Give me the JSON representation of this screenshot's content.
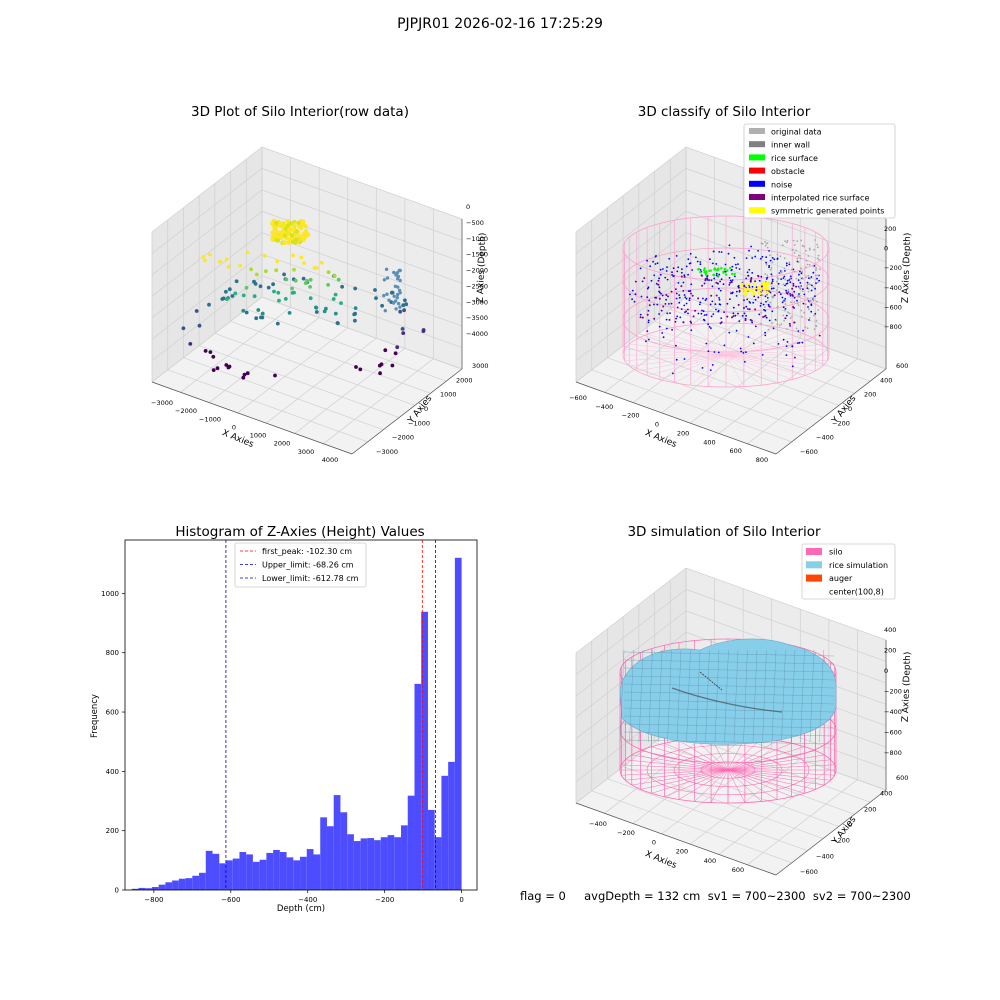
{
  "figure": {
    "suptitle": "PJPJR01 2026-02-16 17:25:29",
    "footer": "flag = 0     avgDepth = 132 cm  sv1 = 700~2300  sv2 = 700~2300"
  },
  "colors": {
    "hist_bar": "#4d4dff",
    "first_peak_line": "#ff0000",
    "limit_line": "#0000cc",
    "silo_pink": "#ff69b4",
    "rice_sim": "#87ceeb",
    "auger": "#ff4500"
  },
  "chart_data": [
    {
      "type": "scatter",
      "subtype": "3d",
      "title": "3D Plot of Silo Interior(row data)",
      "xlabel": "X Axies",
      "ylabel": "Y Axies",
      "zlabel": "Z Axies (Depth)",
      "x_ticks": [
        "−3000",
        "−2000",
        "−1000",
        "0",
        "1000",
        "2000",
        "3000",
        "4000"
      ],
      "y_ticks": [
        "−3000",
        "−2000",
        "−1000",
        "0",
        "1000",
        "2000",
        "3000"
      ],
      "z_ticks": [
        "0",
        "−500",
        "−1000",
        "−1500",
        "−2000",
        "−2500",
        "−3000",
        "−3500",
        "−4000"
      ],
      "colormap": "viridis",
      "grid": true
    },
    {
      "type": "scatter",
      "subtype": "3d",
      "title": "3D classify of Silo Interior",
      "xlabel": "X Axies",
      "ylabel": "Y Axies",
      "zlabel": "Z Axies (Depth)",
      "x_ticks": [
        "−600",
        "−400",
        "−200",
        "0",
        "200",
        "400",
        "600",
        "800"
      ],
      "y_ticks": [
        "−600",
        "−400",
        "−200",
        "0",
        "200",
        "400",
        "600"
      ],
      "z_ticks": [
        "200",
        "0",
        "−200",
        "−400",
        "−600",
        "−800"
      ],
      "legend_position": "top-right",
      "legend": [
        {
          "label": "original data",
          "color": "#b0b0b0"
        },
        {
          "label": "inner wall",
          "color": "#808080"
        },
        {
          "label": "rice surface",
          "color": "#00ff00"
        },
        {
          "label": "obstacle",
          "color": "#ff0000"
        },
        {
          "label": "noise",
          "color": "#0000ff"
        },
        {
          "label": "interpolated rice surface",
          "color": "#800080"
        },
        {
          "label": "symmetric generated points",
          "color": "#ffff00"
        }
      ],
      "grid": true
    },
    {
      "type": "bar",
      "subtype": "histogram",
      "title": "Histogram of Z-Axies (Height) Values",
      "xlabel": "Depth (cm)",
      "ylabel": "Frequency",
      "xlim": [
        -875,
        40
      ],
      "ylim": [
        0,
        1180
      ],
      "x_ticks": [
        -800,
        -600,
        -400,
        -200,
        0
      ],
      "y_ticks": [
        0,
        200,
        400,
        600,
        800,
        1000
      ],
      "bin_width": 17.5,
      "bin_start": -857.5,
      "values": [
        4,
        7,
        6,
        10,
        18,
        26,
        32,
        38,
        40,
        48,
        58,
        132,
        122,
        90,
        100,
        106,
        128,
        120,
        95,
        102,
        125,
        135,
        128,
        110,
        100,
        112,
        138,
        120,
        245,
        215,
        320,
        262,
        188,
        165,
        174,
        175,
        168,
        178,
        185,
        178,
        218,
        318,
        695,
        938,
        270,
        178,
        385,
        432,
        1120
      ],
      "reference_lines": [
        {
          "label": "first_peak: -102.30 cm",
          "x": -102.3,
          "color": "#ff0000"
        },
        {
          "label": "Upper_limit: -68.26 cm",
          "x": -68.26,
          "color": "#0000cc"
        },
        {
          "label": "Lower_limit: -612.78 cm",
          "x": -612.78,
          "color": "#0000cc"
        }
      ],
      "legend_position": "top-center"
    },
    {
      "type": "surface",
      "subtype": "3d",
      "title": "3D simulation of Silo Interior",
      "xlabel": "X Axies",
      "ylabel": "Y Axies",
      "zlabel": "Z Axies (Depth)",
      "x_ticks": [
        "−400",
        "−200",
        "0",
        "200",
        "400",
        "600"
      ],
      "y_ticks": [
        "−600",
        "−400",
        "−200",
        "0",
        "200",
        "400",
        "600"
      ],
      "z_ticks": [
        "400",
        "200",
        "0",
        "−200",
        "−400",
        "−600",
        "−800"
      ],
      "legend_position": "top-right",
      "legend": [
        {
          "label": "silo",
          "color": "#ff69b4"
        },
        {
          "label": "rice simulation",
          "color": "#87ceeb"
        },
        {
          "label": "auger",
          "color": "#ff4500"
        },
        {
          "label": "center(100,8)",
          "color": "#ffffff"
        }
      ],
      "grid": true
    }
  ]
}
